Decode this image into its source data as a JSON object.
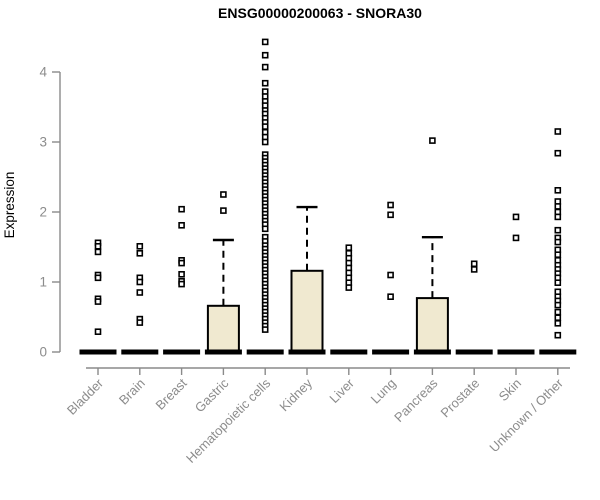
{
  "title": "ENSG00000200063 - SNORA30",
  "colors": {
    "background": "#ffffff",
    "box_fill": "#f0e9d0",
    "box_stroke": "#000000",
    "median_color": "#000000",
    "whisker_color": "#000000",
    "outlier_stroke": "#000000",
    "outlier_fill": "#ffffff",
    "axis_line": "#8a8a8a",
    "axis_text": "#8c8c8c",
    "title_color": "#000000"
  },
  "chart_data": {
    "type": "boxplot",
    "title": "ENSG00000200063 - SNORA30",
    "xlabel": "",
    "ylabel": "Expression",
    "ylim": [
      0,
      4.5
    ],
    "yticks": [
      0,
      1,
      2,
      3,
      4
    ],
    "grid": false,
    "legend": false,
    "categories": [
      "Bladder",
      "Brain",
      "Breast",
      "Gastric",
      "Hematopoietic cells",
      "Kidney",
      "Liver",
      "Lung",
      "Pancreas",
      "Prostate",
      "Skin",
      "Unknown / Other"
    ],
    "boxes": [
      {
        "name": "Bladder",
        "median": 0,
        "q1": 0,
        "q3": 0,
        "whisker_low": 0,
        "whisker_high": 0,
        "outliers": [
          1.56,
          1.51,
          1.43,
          1.1,
          1.06,
          0.76,
          0.72,
          0.29
        ]
      },
      {
        "name": "Brain",
        "median": 0,
        "q1": 0,
        "q3": 0,
        "whisker_low": 0,
        "whisker_high": 0,
        "outliers": [
          1.51,
          1.41,
          1.06,
          1.0,
          0.85,
          0.47,
          0.42
        ]
      },
      {
        "name": "Breast",
        "median": 0,
        "q1": 0,
        "q3": 0,
        "whisker_low": 0,
        "whisker_high": 0,
        "outliers": [
          2.04,
          1.81,
          1.31,
          1.27,
          1.11,
          1.01,
          0.97
        ]
      },
      {
        "name": "Gastric",
        "median": 0,
        "q1": 0,
        "q3": 0.66,
        "whisker_low": 0,
        "whisker_high": 1.6,
        "outliers": [
          2.25,
          2.02
        ]
      },
      {
        "name": "Hematopoietic cells",
        "median": 0,
        "q1": 0,
        "q3": 0,
        "whisker_low": 0,
        "whisker_high": 0,
        "outliers": [
          4.43,
          4.24,
          4.07,
          3.84,
          3.72,
          3.65,
          3.58,
          3.52,
          3.45,
          3.4,
          3.34,
          3.28,
          3.22,
          3.14,
          3.07,
          3.0,
          2.82,
          2.77,
          2.72,
          2.67,
          2.62,
          2.57,
          2.52,
          2.47,
          2.42,
          2.37,
          2.32,
          2.27,
          2.22,
          2.17,
          2.12,
          2.07,
          2.02,
          1.97,
          1.92,
          1.87,
          1.82,
          1.76,
          1.64,
          1.58,
          1.52,
          1.47,
          1.42,
          1.37,
          1.32,
          1.27,
          1.22,
          1.17,
          1.12,
          1.07,
          1.02,
          0.97,
          0.92,
          0.87,
          0.82,
          0.77,
          0.72,
          0.67,
          0.62,
          0.57,
          0.52,
          0.47,
          0.42,
          0.37,
          0.32
        ]
      },
      {
        "name": "Kidney",
        "median": 0,
        "q1": 0,
        "q3": 1.16,
        "whisker_low": 0,
        "whisker_high": 2.07,
        "outliers": []
      },
      {
        "name": "Liver",
        "median": 0,
        "q1": 0,
        "q3": 0,
        "whisker_low": 0,
        "whisker_high": 0,
        "outliers": [
          1.49,
          1.41,
          1.34,
          1.27,
          1.2,
          1.13,
          1.06,
          0.99,
          0.92
        ]
      },
      {
        "name": "Lung",
        "median": 0,
        "q1": 0,
        "q3": 0,
        "whisker_low": 0,
        "whisker_high": 0,
        "outliers": [
          2.1,
          1.96,
          1.1,
          0.79
        ]
      },
      {
        "name": "Pancreas",
        "median": 0,
        "q1": 0,
        "q3": 0.77,
        "whisker_low": 0,
        "whisker_high": 1.64,
        "outliers": [
          3.02
        ]
      },
      {
        "name": "Prostate",
        "median": 0,
        "q1": 0,
        "q3": 0,
        "whisker_low": 0,
        "whisker_high": 0,
        "outliers": [
          1.26,
          1.18
        ]
      },
      {
        "name": "Skin",
        "median": 0,
        "q1": 0,
        "q3": 0,
        "whisker_low": 0,
        "whisker_high": 0,
        "outliers": [
          1.93,
          1.63
        ]
      },
      {
        "name": "Unknown / Other",
        "median": 0,
        "q1": 0,
        "q3": 0,
        "whisker_low": 0,
        "whisker_high": 0,
        "outliers": [
          3.15,
          2.84,
          2.31,
          2.15,
          2.08,
          2.0,
          1.93,
          1.74,
          1.63,
          1.57,
          1.46,
          1.39,
          1.31,
          1.24,
          1.18,
          1.12,
          1.06,
          0.99,
          0.86,
          0.79,
          0.73,
          0.67,
          0.57,
          0.49,
          0.41,
          0.24
        ]
      }
    ]
  }
}
